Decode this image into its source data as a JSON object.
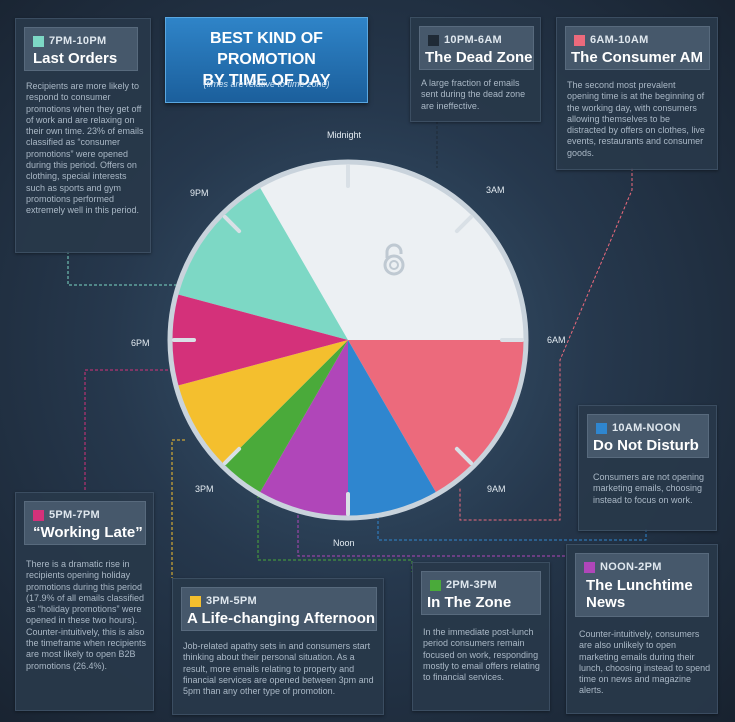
{
  "title_lines": [
    "BEST KIND OF PROMOTION",
    "BY TIME OF DAY"
  ],
  "subtitle": "(times are relative to time zone)",
  "clock_labels": {
    "midnight": "Midnight",
    "h3am": "3AM",
    "h6am": "6AM",
    "h9am": "9AM",
    "noon": "Noon",
    "h3pm": "3PM",
    "h6pm": "6PM",
    "h9pm": "9PM"
  },
  "center_icon": "lock-open-icon",
  "segments": [
    {
      "key": "last-orders",
      "time": "7PM-10PM",
      "name": "Last Orders",
      "color": "#7dd8c5",
      "start_hour": 19,
      "end_hour": 22,
      "body": "Recipients are more likely to respond to consumer promotions when they get off of work and are relaxing on their own time. 23% of emails classified as “consumer promotions” were opened during this period. Offers on clothing, special interests such as sports and gym promotions performed extremely well in this period."
    },
    {
      "key": "dead-zone",
      "time": "10PM-6AM",
      "name": "The Dead Zone",
      "color": "#1f2a36",
      "start_hour": 22,
      "end_hour": 30,
      "body": "A large fraction of emails sent during the dead zone are ineffective."
    },
    {
      "key": "consumer-am",
      "time": "6AM-10AM",
      "name": "The Consumer AM",
      "color": "#ec6a7c",
      "start_hour": 6,
      "end_hour": 10,
      "body": "The second most prevalent opening time is at the beginning of the working day, with consumers allowing themselves to be distracted by offers on clothes, live events, restaurants and consumer goods."
    },
    {
      "key": "do-not-disturb",
      "time": "10AM-NOON",
      "name": "Do Not Disturb",
      "color": "#2f86cf",
      "start_hour": 10,
      "end_hour": 12,
      "body": "Consumers are not opening marketing emails, choosing instead to focus on work."
    },
    {
      "key": "lunchtime-news",
      "time": "NOON-2PM",
      "name": "The Lunchtime News",
      "color": "#b046b9",
      "start_hour": 12,
      "end_hour": 14,
      "body": "Counter-intuitively, consumers are also unlikely to open marketing emails during their lunch, choosing instead to spend time on news and magazine alerts."
    },
    {
      "key": "in-the-zone",
      "time": "2PM-3PM",
      "name": "In The Zone",
      "color": "#4aaa3a",
      "start_hour": 14,
      "end_hour": 15,
      "body": "In the immediate post-lunch period consumers remain focused on work, responding mostly to email offers relating to financial services."
    },
    {
      "key": "afternoon",
      "time": "3PM-5PM",
      "name": "A Life-changing Afternoon",
      "color": "#f4bf2e",
      "start_hour": 15,
      "end_hour": 17,
      "body": "Job-related apathy sets in and consumers start thinking about their personal situation. As a result, more emails relating to property and financial services are opened between 3pm and 5pm than any other type of promotion."
    },
    {
      "key": "working-late",
      "time": "5PM-7PM",
      "name": "“Working Late”",
      "color": "#d4317a",
      "start_hour": 17,
      "end_hour": 19,
      "body": "There is a dramatic rise in recipients opening holiday promotions during this period (17.9% of all emails classified as “holiday promotions” were opened in these two hours). Counter-intuitively, this is also the timeframe when recipients are most likely to open B2B promotions (26.4%)."
    }
  ]
}
